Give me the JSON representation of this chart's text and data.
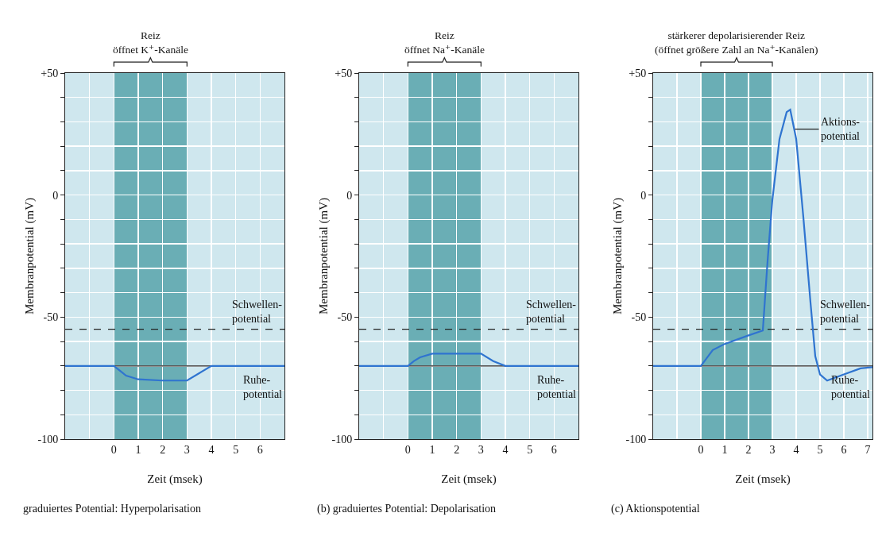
{
  "chart_data": [
    {
      "type": "line",
      "xlabel": "Zeit (msek)",
      "ylabel": "Membranpotential (mV)",
      "xlim": [
        -2,
        7
      ],
      "ylim": [
        -100,
        50
      ],
      "xticks": [
        {
          "value": -2,
          "label": null
        },
        {
          "value": -1,
          "label": null
        },
        0,
        1,
        2,
        3,
        4,
        5,
        6,
        {
          "value": 7,
          "label": null
        }
      ],
      "yticks": [
        -100,
        {
          "value": -90,
          "label": null
        },
        {
          "value": -80,
          "label": null
        },
        {
          "value": -70,
          "label": null
        },
        {
          "value": -60,
          "label": null
        },
        -50,
        {
          "value": -40,
          "label": null
        },
        {
          "value": -30,
          "label": null
        },
        {
          "value": -20,
          "label": null
        },
        {
          "value": -10,
          "label": null
        },
        0,
        {
          "value": 10,
          "label": null
        },
        {
          "value": 20,
          "label": null
        },
        {
          "value": 30,
          "label": null
        },
        {
          "value": 40,
          "label": null
        },
        {
          "value": 50,
          "label": "+50"
        }
      ],
      "grid": true,
      "marker": "none",
      "line_style": "solid",
      "series": [
        {
          "color": "#2f74d0",
          "x": [
            -2,
            0,
            0.25,
            0.5,
            1,
            2,
            3,
            3.5,
            4,
            7
          ],
          "values": [
            -70,
            -70,
            -72,
            -74,
            -75.5,
            -76,
            -76,
            -73,
            -70,
            -70
          ]
        }
      ],
      "ref_lines": [
        {
          "axis": "y",
          "value": -55,
          "label": "Schwellen-\npotential",
          "color": "#222222",
          "line_style": "dashed"
        },
        {
          "axis": "y",
          "value": -70,
          "label": "Ruhe-\npotential",
          "color": "#222222",
          "line_style": "solid"
        }
      ],
      "bands": [
        {
          "axis": "x",
          "from": 0,
          "to": 3,
          "label": "Reiz\nöffnet K⁺-Kanäle",
          "color": "#6aaeb5"
        }
      ],
      "annotations": [
        "graduiertes Potential: Hyperpolarisation"
      ]
    },
    {
      "type": "line",
      "xlabel": "Zeit (msek)",
      "ylabel": "Membranpotential (mV)",
      "xlim": [
        -2,
        7
      ],
      "ylim": [
        -100,
        50
      ],
      "xticks": [
        {
          "value": -2,
          "label": null
        },
        {
          "value": -1,
          "label": null
        },
        0,
        1,
        2,
        3,
        4,
        5,
        6,
        {
          "value": 7,
          "label": null
        }
      ],
      "yticks": [
        -100,
        {
          "value": -90,
          "label": null
        },
        {
          "value": -80,
          "label": null
        },
        {
          "value": -70,
          "label": null
        },
        {
          "value": -60,
          "label": null
        },
        -50,
        {
          "value": -40,
          "label": null
        },
        {
          "value": -30,
          "label": null
        },
        {
          "value": -20,
          "label": null
        },
        {
          "value": -10,
          "label": null
        },
        0,
        {
          "value": 10,
          "label": null
        },
        {
          "value": 20,
          "label": null
        },
        {
          "value": 30,
          "label": null
        },
        {
          "value": 40,
          "label": null
        },
        {
          "value": 50,
          "label": "+50"
        }
      ],
      "grid": true,
      "marker": "none",
      "line_style": "solid",
      "series": [
        {
          "color": "#2f74d0",
          "x": [
            -2,
            0,
            0.25,
            0.5,
            1,
            2,
            3,
            3.5,
            4,
            7
          ],
          "values": [
            -70,
            -70,
            -68,
            -66.5,
            -65,
            -65,
            -65,
            -68,
            -70,
            -70
          ]
        }
      ],
      "ref_lines": [
        {
          "axis": "y",
          "value": -55,
          "label": "Schwellen-\npotential",
          "color": "#222222",
          "line_style": "dashed"
        },
        {
          "axis": "y",
          "value": -70,
          "label": "Ruhe-\npotential",
          "color": "#222222",
          "line_style": "solid"
        }
      ],
      "bands": [
        {
          "axis": "x",
          "from": 0,
          "to": 3,
          "label": "Reiz\nöffnet Na⁺-Kanäle",
          "color": "#6aaeb5"
        }
      ],
      "annotations": [
        "(b) graduiertes Potential: Depolarisation"
      ]
    },
    {
      "type": "line",
      "xlabel": "Zeit (msek)",
      "ylabel": "Membranpotential (mV)",
      "xlim": [
        -2,
        7.2
      ],
      "ylim": [
        -100,
        50
      ],
      "xticks": [
        {
          "value": -2,
          "label": null
        },
        {
          "value": -1,
          "label": null
        },
        0,
        1,
        2,
        3,
        4,
        5,
        6,
        7
      ],
      "yticks": [
        -100,
        {
          "value": -90,
          "label": null
        },
        {
          "value": -80,
          "label": null
        },
        {
          "value": -70,
          "label": null
        },
        {
          "value": -60,
          "label": null
        },
        -50,
        {
          "value": -40,
          "label": null
        },
        {
          "value": -30,
          "label": null
        },
        {
          "value": -20,
          "label": null
        },
        {
          "value": -10,
          "label": null
        },
        0,
        {
          "value": 10,
          "label": null
        },
        {
          "value": 20,
          "label": null
        },
        {
          "value": 30,
          "label": null
        },
        {
          "value": 40,
          "label": null
        },
        {
          "value": 50,
          "label": "+50"
        }
      ],
      "grid": true,
      "marker": "none",
      "line_style": "solid",
      "series": [
        {
          "color": "#2f74d0",
          "x": [
            -2,
            0,
            0.5,
            1,
            2,
            2.6,
            2.8,
            3,
            3.3,
            3.6,
            3.75,
            4,
            4.3,
            4.6,
            4.8,
            5,
            5.3,
            6,
            6.7,
            7.2
          ],
          "values": [
            -70,
            -70,
            -63.5,
            -61,
            -57.5,
            -55.5,
            -27,
            -2,
            23,
            34,
            35,
            23,
            -9,
            -44,
            -66,
            -73.5,
            -76,
            -73.5,
            -71,
            -70.5
          ]
        }
      ],
      "ref_lines": [
        {
          "axis": "y",
          "value": -55,
          "label": "Schwellen-\npotential",
          "color": "#222222",
          "line_style": "dashed"
        },
        {
          "axis": "y",
          "value": -70,
          "label": "Ruhe-\npotential",
          "color": "#222222",
          "line_style": "solid"
        }
      ],
      "bands": [
        {
          "axis": "x",
          "from": 0,
          "to": 3,
          "label": "stärkerer depolarisierender Reiz\n(öffnet größere Zahl an Na⁺-Kanälen)",
          "color": "#6aaeb5"
        }
      ],
      "annotations": [
        {
          "text": "Aktions-\npotential",
          "x": 3.95,
          "y": 27
        },
        "(c) Aktionspotential"
      ]
    }
  ]
}
